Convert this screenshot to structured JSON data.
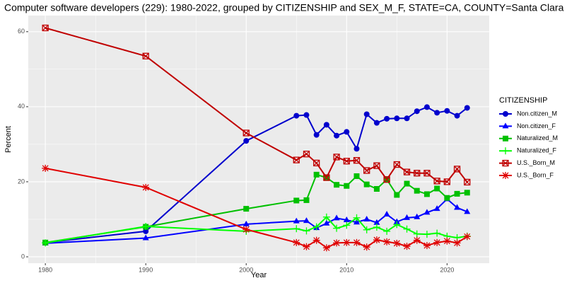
{
  "chart_data": {
    "type": "line",
    "title": "Computer software developers (229): 1980-2022, grouped by CITIZENSHIP and SEX_M_F, STATE=CA, COUNTY=Santa Clara",
    "x_label": "Year",
    "y_label": "Percent",
    "legend_title": "CITIZENSHIP",
    "legend": "right",
    "grid": true,
    "x": [
      1980,
      1990,
      2000,
      2005,
      2006,
      2007,
      2008,
      2009,
      2010,
      2011,
      2012,
      2013,
      2014,
      2015,
      2016,
      2017,
      2018,
      2019,
      2020,
      2021,
      2022
    ],
    "xlim": [
      1978.3,
      2024.2
    ],
    "xticks": [
      1980,
      1990,
      2000,
      2010,
      2020
    ],
    "ylim": [
      -1.7,
      64.3
    ],
    "yticks": [
      0,
      20,
      40,
      60
    ],
    "series": [
      {
        "name": "Non.citizen_M",
        "color": "#0000CD",
        "shape": "circle",
        "values": [
          3.8,
          6.8,
          30.9,
          37.6,
          37.8,
          32.5,
          35.2,
          32.3,
          33.3,
          28.8,
          38,
          35.7,
          36.8,
          36.9,
          36.9,
          38.8,
          39.9,
          38.4,
          38.9,
          37.6,
          39.7
        ]
      },
      {
        "name": "Non.citizen_F",
        "color": "#0000FF",
        "shape": "triangle",
        "values": [
          3.6,
          5,
          8.7,
          9.5,
          9.6,
          7.7,
          8.9,
          10.3,
          9.8,
          9.2,
          10,
          9.1,
          11.3,
          9.3,
          10.4,
          10.6,
          11.8,
          12.8,
          15.4,
          13.1,
          12
        ]
      },
      {
        "name": "Naturalized_M",
        "color": "#00C000",
        "shape": "square",
        "values": [
          3.8,
          8,
          12.8,
          15,
          15.1,
          21.9,
          21.1,
          19.2,
          18.9,
          21.5,
          19.3,
          18.1,
          20.6,
          16.5,
          19.5,
          17.6,
          16.7,
          18.2,
          15.7,
          16.8,
          17.1
        ]
      },
      {
        "name": "Naturalized_F",
        "color": "#00FF00",
        "shape": "plus",
        "values": [
          3.7,
          8.1,
          6.8,
          7.5,
          6.9,
          8,
          10.6,
          7.6,
          8.4,
          10.4,
          7.2,
          7.9,
          6.8,
          8.6,
          7.4,
          6.1,
          6,
          6.3,
          5.5,
          5.1,
          5.5
        ]
      },
      {
        "name": "U.S._Born_M",
        "color": "#C00000",
        "shape": "square-cross",
        "values": [
          61,
          53.5,
          33,
          25.8,
          27.4,
          25,
          21.1,
          26.6,
          25.5,
          25.7,
          23,
          24.3,
          20.6,
          24.6,
          22.6,
          22.3,
          22.3,
          20.2,
          20,
          23.4,
          19.9
        ]
      },
      {
        "name": "U.S._Born_F",
        "color": "#E00000",
        "shape": "asterisk",
        "values": [
          23.6,
          18.5,
          7.3,
          3.8,
          2.7,
          4.4,
          2.4,
          3.7,
          3.8,
          3.8,
          2.6,
          4.5,
          4,
          3.6,
          2.8,
          4.4,
          3,
          3.8,
          4.2,
          3.7,
          5.4
        ]
      }
    ]
  }
}
